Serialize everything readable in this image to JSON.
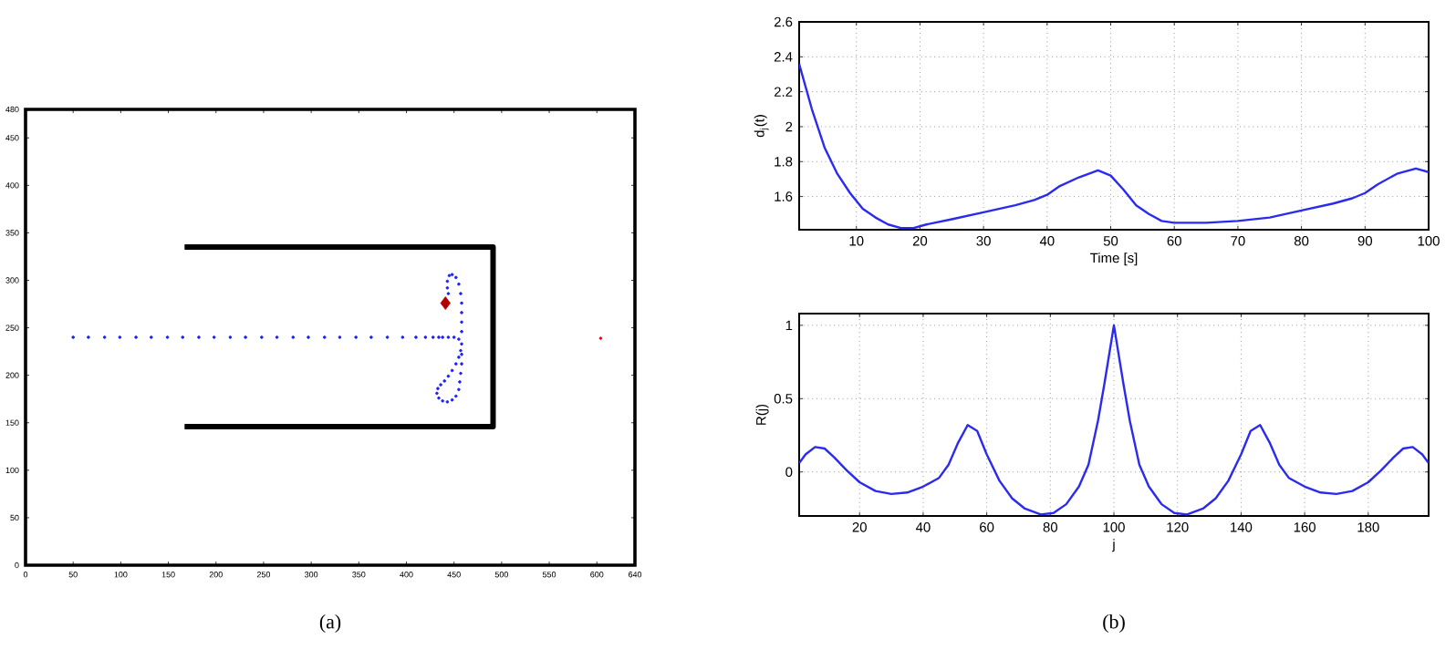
{
  "chart_data": [
    {
      "type": "line",
      "xlim": [
        0,
        640
      ],
      "ylim": [
        0,
        480
      ],
      "xticks": [
        0,
        50,
        100,
        150,
        200,
        250,
        300,
        350,
        400,
        450,
        500,
        550,
        600,
        640
      ],
      "yticks": [
        0,
        50,
        100,
        150,
        200,
        250,
        300,
        350,
        400,
        450,
        480
      ],
      "annotations": [
        "(a)"
      ],
      "series": [
        {
          "type": "line",
          "color": "#000000",
          "x": [
            167,
            491,
            491,
            167
          ],
          "values": [
            335,
            335,
            146,
            146
          ]
        },
        {
          "type": "scatter",
          "marker": "circle",
          "color": "#2020ff",
          "x": [
            50,
            66,
            83,
            99,
            116,
            132,
            149,
            165,
            182,
            198,
            215,
            231,
            248,
            264,
            281,
            297,
            314,
            330,
            347,
            363,
            380,
            396,
            410,
            420,
            428,
            434
          ],
          "values": [
            240,
            240,
            240,
            240,
            240,
            240,
            240,
            240,
            240,
            240,
            240,
            240,
            240,
            240,
            240,
            240,
            240,
            240,
            240,
            240,
            240,
            240,
            240,
            240,
            240,
            240
          ]
        },
        {
          "type": "scatter",
          "marker": "circle",
          "color": "#2020ff",
          "x": [
            438,
            444,
            450,
            455,
            458,
            457,
            455,
            452,
            448,
            444,
            440,
            436,
            433,
            432,
            434,
            438,
            443,
            448,
            452,
            455,
            456,
            457,
            458,
            458,
            458,
            458,
            458,
            458,
            457,
            455,
            452,
            448,
            445,
            443,
            443,
            444
          ],
          "values": [
            240,
            240,
            240,
            238,
            233,
            226,
            219,
            212,
            205,
            199,
            194,
            190,
            186,
            181,
            176,
            173,
            172,
            174,
            178,
            185,
            193,
            202,
            212,
            222,
            246,
            256,
            266,
            276,
            286,
            296,
            303,
            306,
            305,
            299,
            292,
            286
          ]
        },
        {
          "type": "scatter",
          "marker": "diamond",
          "color": "#b00000",
          "x": [
            441
          ],
          "values": [
            276
          ]
        },
        {
          "type": "scatter",
          "marker": "circle",
          "color": "#ff0000",
          "x": [
            604
          ],
          "values": [
            239
          ]
        }
      ]
    },
    {
      "type": "line",
      "xlim": [
        1,
        100
      ],
      "ylim": [
        1.41,
        2.6
      ],
      "xticks": [
        10,
        20,
        30,
        40,
        50,
        60,
        70,
        80,
        90,
        100
      ],
      "yticks": [
        1.6,
        1.8,
        2,
        2.2,
        2.4,
        2.6
      ],
      "grid": true,
      "xlabel": "Time [s]",
      "ylabel": "d$_{j}$(t)",
      "series": [
        {
          "color": "#2a2af0",
          "x": [
            1,
            3,
            5,
            7,
            9,
            11,
            13,
            15,
            17,
            19,
            21,
            25,
            30,
            35,
            38,
            40,
            42,
            45,
            48,
            50,
            52,
            54,
            56,
            58,
            60,
            65,
            70,
            75,
            80,
            85,
            88,
            90,
            92,
            95,
            98,
            100
          ],
          "values": [
            2.36,
            2.1,
            1.88,
            1.73,
            1.62,
            1.53,
            1.48,
            1.44,
            1.42,
            1.42,
            1.44,
            1.47,
            1.51,
            1.55,
            1.58,
            1.61,
            1.66,
            1.71,
            1.75,
            1.72,
            1.64,
            1.55,
            1.5,
            1.46,
            1.45,
            1.45,
            1.46,
            1.48,
            1.52,
            1.56,
            1.59,
            1.62,
            1.67,
            1.73,
            1.76,
            1.74
          ]
        }
      ]
    },
    {
      "type": "line",
      "xlim": [
        1,
        199
      ],
      "ylim": [
        -0.3,
        1.08
      ],
      "xticks": [
        20,
        40,
        60,
        80,
        100,
        120,
        140,
        160,
        180
      ],
      "yticks": [
        0,
        0.5,
        1
      ],
      "grid": true,
      "xlabel": "j",
      "ylabel": "R(j)",
      "annotations": [
        "(b)"
      ],
      "series": [
        {
          "color": "#2a2af0",
          "x": [
            1,
            3,
            6,
            9,
            12,
            16,
            20,
            25,
            30,
            35,
            40,
            45,
            48,
            51,
            54,
            57,
            60,
            64,
            68,
            72,
            77,
            81,
            85,
            89,
            92,
            95,
            97,
            100,
            103,
            105,
            108,
            111,
            115,
            119,
            123,
            128,
            132,
            136,
            140,
            143,
            146,
            149,
            152,
            155,
            160,
            165,
            170,
            175,
            180,
            184,
            188,
            191,
            194,
            197,
            199
          ],
          "values": [
            0.06,
            0.12,
            0.17,
            0.16,
            0.1,
            0.01,
            -0.07,
            -0.13,
            -0.15,
            -0.14,
            -0.1,
            -0.04,
            0.05,
            0.2,
            0.32,
            0.28,
            0.12,
            -0.06,
            -0.18,
            -0.25,
            -0.29,
            -0.28,
            -0.22,
            -0.1,
            0.05,
            0.35,
            0.6,
            1.0,
            0.6,
            0.35,
            0.05,
            -0.1,
            -0.22,
            -0.28,
            -0.29,
            -0.25,
            -0.18,
            -0.06,
            0.12,
            0.28,
            0.32,
            0.2,
            0.05,
            -0.04,
            -0.1,
            -0.14,
            -0.15,
            -0.13,
            -0.07,
            0.01,
            0.1,
            0.16,
            0.17,
            0.12,
            0.06
          ]
        }
      ]
    }
  ]
}
